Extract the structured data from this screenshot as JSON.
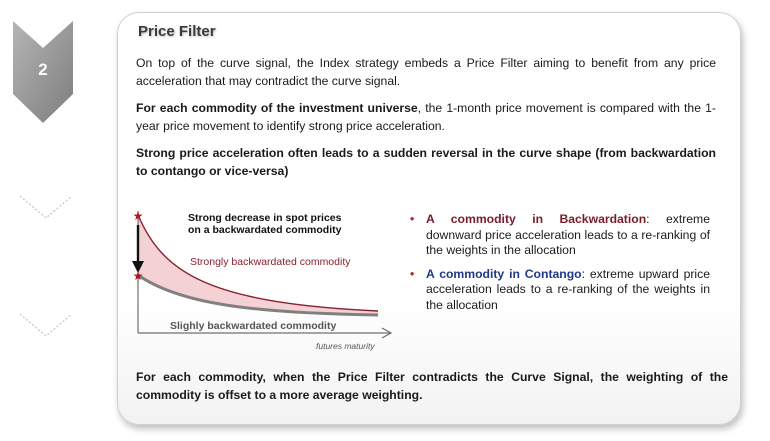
{
  "step": {
    "number": "2"
  },
  "card": {
    "title": "Price Filter",
    "para1": "On top of the curve signal, the Index strategy embeds a Price Filter aiming to benefit from any price acceleration that may contradict the curve signal.",
    "para2_bold": "For each commodity of the investment universe",
    "para2_rest": ", the 1-month price movement is compared with the 1-year price movement to identify strong price acceleration.",
    "para3": "Strong price acceleration often leads to a sudden reversal in the curve shape (from backwardation to contango or vice-versa)",
    "diagram": {
      "annotation_line1": "Strong decrease in spot prices",
      "annotation_line2": "on a backwardated commodity",
      "strong_curve_label": "Strongly backwardated commodity",
      "slight_curve_label": "Slighly backwardated commodity",
      "x_axis_label": "futures maturity"
    },
    "bullets": [
      {
        "lead": "A commodity in Backwardation",
        "rest": ": extreme downward price acceleration leads to a re-ranking of the weights in the allocation"
      },
      {
        "lead": "A commodity in Contango",
        "rest": ": extreme upward price acceleration leads to a re-ranking of the weights in the allocation"
      }
    ],
    "conclusion": "For each commodity, when the Price Filter contradicts the Curve Signal, the weighting of the commodity is offset to a more average weighting."
  },
  "colors": {
    "chevron_gray": "#9a9a9a",
    "strong_curve": "#8a2030",
    "slight_curve": "#808080",
    "area_fill": "#f2c9cc",
    "bullet_red": "#c0202a",
    "contango_blue": "#1e3a8a"
  }
}
